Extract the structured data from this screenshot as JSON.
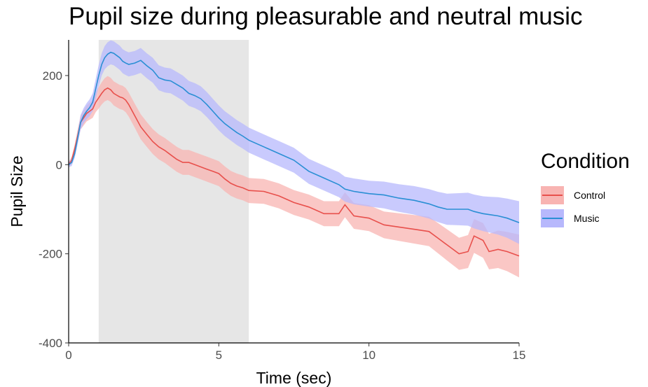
{
  "chart_data": {
    "type": "line",
    "title": "Pupil size during pleasurable and neutral music",
    "xlabel": "Time (sec)",
    "ylabel": "Pupil Size",
    "xlim": [
      0,
      15
    ],
    "ylim": [
      -400,
      280
    ],
    "x_ticks": [
      0,
      5,
      10,
      15
    ],
    "y_ticks": [
      -400,
      -200,
      0,
      200
    ],
    "shaded_region": [
      1,
      6
    ],
    "legend": {
      "title": "Condition",
      "placement": "right"
    },
    "grid": false,
    "series": [
      {
        "name": "Control",
        "color": "#e8504c",
        "ribbon_color": "#f8b4b2",
        "x": [
          0,
          0.1,
          0.2,
          0.3,
          0.4,
          0.5,
          0.6,
          0.7,
          0.8,
          0.9,
          1.0,
          1.1,
          1.2,
          1.3,
          1.4,
          1.5,
          1.6,
          1.7,
          1.8,
          1.9,
          2.0,
          2.2,
          2.4,
          2.6,
          2.8,
          3.0,
          3.2,
          3.4,
          3.6,
          3.8,
          4.0,
          4.2,
          4.4,
          4.6,
          4.8,
          5.0,
          5.2,
          5.4,
          5.6,
          5.8,
          6.0,
          6.5,
          7.0,
          7.5,
          8.0,
          8.5,
          9.0,
          9.2,
          9.5,
          10.0,
          10.5,
          11.0,
          11.5,
          12.0,
          12.3,
          12.6,
          13.0,
          13.3,
          13.5,
          13.8,
          14.0,
          14.3,
          14.6,
          15.0
        ],
        "y": [
          0,
          10,
          35,
          65,
          95,
          105,
          115,
          120,
          125,
          140,
          150,
          160,
          168,
          172,
          168,
          160,
          156,
          152,
          150,
          145,
          135,
          110,
          85,
          68,
          52,
          40,
          32,
          22,
          12,
          5,
          5,
          0,
          -5,
          -10,
          -15,
          -20,
          -32,
          -42,
          -48,
          -52,
          -58,
          -60,
          -70,
          -85,
          -95,
          -110,
          -110,
          -90,
          -115,
          -120,
          -135,
          -140,
          -145,
          -150,
          -165,
          -180,
          -200,
          -195,
          -160,
          -170,
          -195,
          -190,
          -195,
          -205
        ],
        "band_half_width": [
          6,
          8,
          10,
          14,
          16,
          17,
          18,
          19,
          20,
          22,
          24,
          25,
          26,
          27,
          27,
          27,
          27,
          27,
          27,
          27,
          27,
          27,
          28,
          28,
          28,
          28,
          28,
          28,
          28,
          28,
          28,
          28,
          28,
          28,
          28,
          28,
          28,
          28,
          28,
          28,
          28,
          28,
          28,
          28,
          28,
          28,
          28,
          28,
          29,
          29,
          30,
          31,
          32,
          33,
          34,
          35,
          36,
          37,
          38,
          39,
          40,
          42,
          44,
          48
        ]
      },
      {
        "name": "Music",
        "color": "#2a8fd4",
        "ribbon_color": "#b7b8fc",
        "x": [
          0,
          0.1,
          0.2,
          0.3,
          0.4,
          0.5,
          0.6,
          0.7,
          0.8,
          0.9,
          1.0,
          1.1,
          1.2,
          1.3,
          1.4,
          1.5,
          1.6,
          1.7,
          1.8,
          1.9,
          2.0,
          2.2,
          2.4,
          2.6,
          2.8,
          3.0,
          3.2,
          3.4,
          3.6,
          3.8,
          4.0,
          4.2,
          4.4,
          4.6,
          4.8,
          5.0,
          5.2,
          5.4,
          5.6,
          5.8,
          6.0,
          6.5,
          7.0,
          7.5,
          8.0,
          8.5,
          9.0,
          9.2,
          9.5,
          10.0,
          10.5,
          11.0,
          11.5,
          12.0,
          12.3,
          12.6,
          13.0,
          13.3,
          13.5,
          13.8,
          14.0,
          14.3,
          14.6,
          15.0
        ],
        "y": [
          0,
          5,
          25,
          60,
          95,
          110,
          120,
          128,
          140,
          170,
          200,
          225,
          240,
          248,
          252,
          250,
          245,
          240,
          232,
          228,
          225,
          228,
          234,
          222,
          212,
          195,
          190,
          188,
          180,
          172,
          160,
          155,
          148,
          135,
          120,
          105,
          92,
          82,
          72,
          64,
          55,
          40,
          25,
          10,
          -15,
          -30,
          -45,
          -55,
          -60,
          -65,
          -68,
          -75,
          -80,
          -88,
          -95,
          -100,
          -100,
          -100,
          -105,
          -110,
          -112,
          -115,
          -120,
          -130
        ]
      }
    ]
  }
}
